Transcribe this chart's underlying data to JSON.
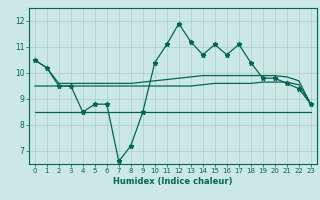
{
  "xlabel": "Humidex (Indice chaleur)",
  "bg_color": "#cce8e4",
  "line_color": "#006655",
  "grid_color": "#aaccc8",
  "xlim": [
    -0.5,
    23.5
  ],
  "ylim": [
    6.5,
    12.5
  ],
  "yticks": [
    7,
    8,
    9,
    10,
    11,
    12
  ],
  "xticks": [
    0,
    1,
    2,
    3,
    4,
    5,
    6,
    7,
    8,
    9,
    10,
    11,
    12,
    13,
    14,
    15,
    16,
    17,
    18,
    19,
    20,
    21,
    22,
    23
  ],
  "main_line": [
    10.5,
    10.2,
    9.5,
    9.5,
    8.5,
    8.8,
    8.8,
    6.6,
    7.2,
    8.5,
    10.4,
    11.1,
    11.9,
    11.2,
    10.7,
    11.1,
    10.7,
    11.1,
    10.4,
    9.8,
    9.8,
    9.6,
    9.4,
    8.8
  ],
  "upper_line": [
    10.5,
    10.2,
    9.6,
    9.6,
    9.6,
    9.6,
    9.6,
    9.6,
    9.6,
    9.65,
    9.7,
    9.75,
    9.8,
    9.85,
    9.9,
    9.9,
    9.9,
    9.9,
    9.9,
    9.9,
    9.9,
    9.85,
    9.7,
    8.8
  ],
  "middle_line": [
    9.5,
    9.5,
    9.5,
    9.5,
    9.5,
    9.5,
    9.5,
    9.5,
    9.5,
    9.5,
    9.5,
    9.5,
    9.5,
    9.5,
    9.55,
    9.6,
    9.6,
    9.6,
    9.6,
    9.65,
    9.65,
    9.65,
    9.55,
    8.8
  ],
  "lower_line": [
    8.5,
    8.5,
    8.5,
    8.5,
    8.5,
    8.5,
    8.5,
    8.5,
    8.5,
    8.5,
    8.5,
    8.5,
    8.5,
    8.5,
    8.5,
    8.5,
    8.5,
    8.5,
    8.5,
    8.5,
    8.5,
    8.5,
    8.5,
    8.5
  ]
}
